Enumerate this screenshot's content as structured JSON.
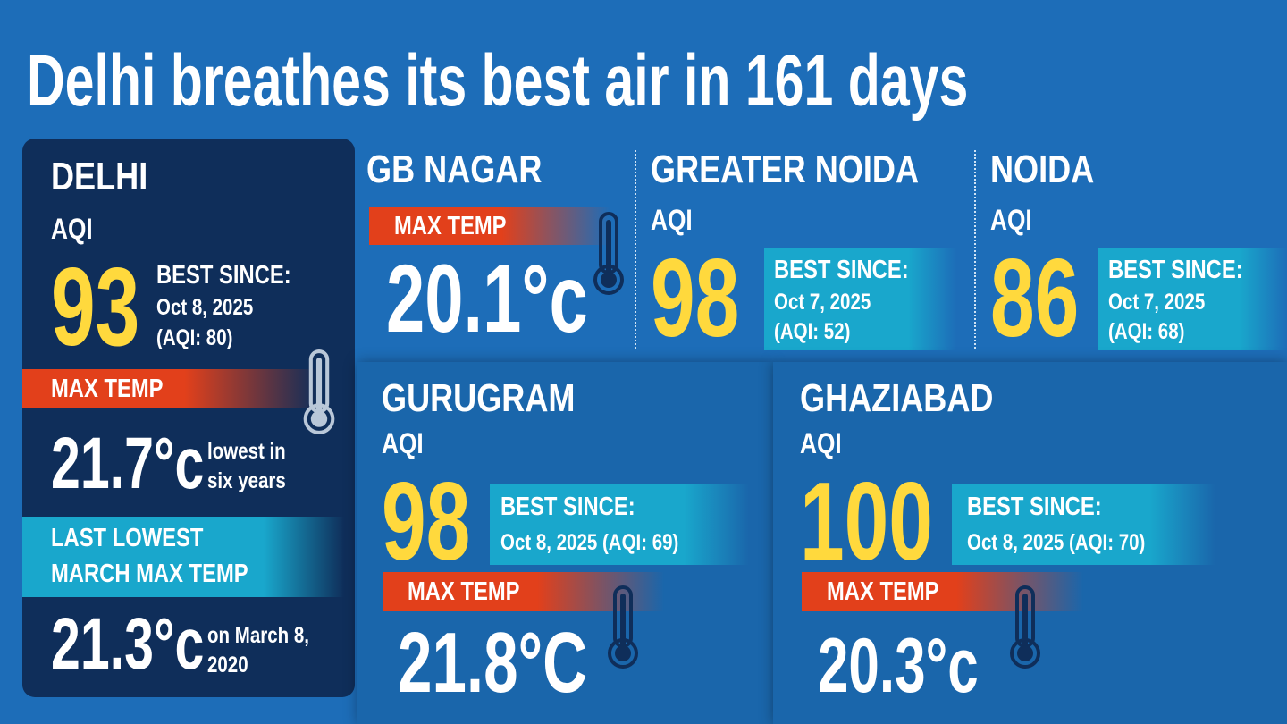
{
  "title": "Delhi breathes its best air in 161 days",
  "delhi": {
    "name": "DELHI",
    "aqi_label": "AQI",
    "aqi": 93,
    "best_since_label": "BEST SINCE:",
    "best_since_date": "Oct 8, 2025",
    "best_since_aqi": "(AQI: 80)",
    "max_temp_label": "MAX TEMP",
    "max_temp": "21.7°c",
    "max_temp_note": [
      "lowest in",
      "six years"
    ],
    "last_lowest_label": [
      "LAST LOWEST",
      "MARCH MAX TEMP"
    ],
    "last_lowest_temp": "21.3°c",
    "last_lowest_note": [
      "on March 8,",
      "2020"
    ]
  },
  "gb_nagar": {
    "name": "GB NAGAR",
    "max_temp_label": "MAX TEMP",
    "max_temp": "20.1°c"
  },
  "greater_noida": {
    "name": "GREATER NOIDA",
    "aqi_label": "AQI",
    "aqi": 98,
    "best_since_label": "BEST SINCE:",
    "best_since_date": "Oct 7, 2025",
    "best_since_aqi": "(AQI: 52)"
  },
  "noida": {
    "name": "NOIDA",
    "aqi_label": "AQI",
    "aqi": 86,
    "best_since_label": "BEST SINCE:",
    "best_since_date": "Oct 7, 2025",
    "best_since_aqi": "(AQI: 68)"
  },
  "gurugram": {
    "name": "GURUGRAM",
    "aqi_label": "AQI",
    "aqi": 98,
    "best_since_label": "BEST SINCE:",
    "best_since_detail": "Oct 8, 2025 (AQI: 69)",
    "max_temp_label": "MAX TEMP",
    "max_temp": "21.8°C"
  },
  "ghaziabad": {
    "name": "GHAZIABAD",
    "aqi_label": "AQI",
    "aqi": 100,
    "best_since_label": "BEST SINCE:",
    "best_since_detail": "Oct 8, 2025 (AQI: 70)",
    "max_temp_label": "MAX TEMP",
    "max_temp": "20.3°c"
  }
}
